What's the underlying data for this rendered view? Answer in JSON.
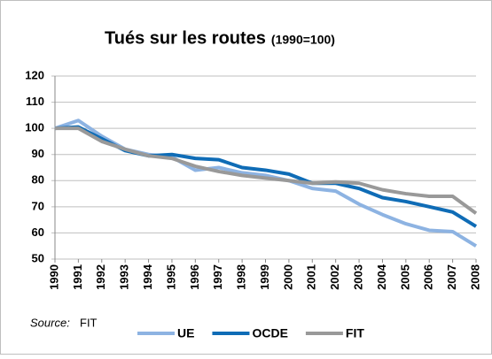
{
  "chart_data": {
    "type": "line",
    "title": "Tués sur les routes",
    "subtitle": "(1990=100)",
    "categories": [
      "1990",
      "1991",
      "1992",
      "1993",
      "1994",
      "1995",
      "1996",
      "1997",
      "1998",
      "1999",
      "2000",
      "2001",
      "2002",
      "2003",
      "2004",
      "2005",
      "2006",
      "2007",
      "2008"
    ],
    "series": [
      {
        "name": "UE",
        "color": "#8db3e2",
        "values": [
          100,
          103,
          97,
          92,
          90,
          89,
          84,
          85,
          83,
          82,
          80,
          77,
          76,
          71,
          67,
          63.5,
          61,
          60.5,
          55
        ]
      },
      {
        "name": "OCDE",
        "color": "#0f6cb6",
        "values": [
          100,
          100.5,
          96,
          91.5,
          89.5,
          90,
          88.5,
          88,
          85,
          84,
          82.5,
          79,
          79,
          77,
          73.5,
          72,
          70,
          68,
          62.5
        ]
      },
      {
        "name": "FIT",
        "color": "#999999",
        "values": [
          100,
          100,
          95,
          92,
          89.5,
          88.5,
          85.5,
          83.5,
          82,
          81,
          80,
          79,
          79.5,
          79,
          76.5,
          75,
          74,
          74,
          67.5
        ]
      }
    ],
    "ylim": [
      50,
      120
    ],
    "yticks": [
      50,
      60,
      70,
      80,
      90,
      100,
      110,
      120
    ],
    "grid": true,
    "source_label": "Source:",
    "source": "FIT",
    "legend": "bottom"
  }
}
